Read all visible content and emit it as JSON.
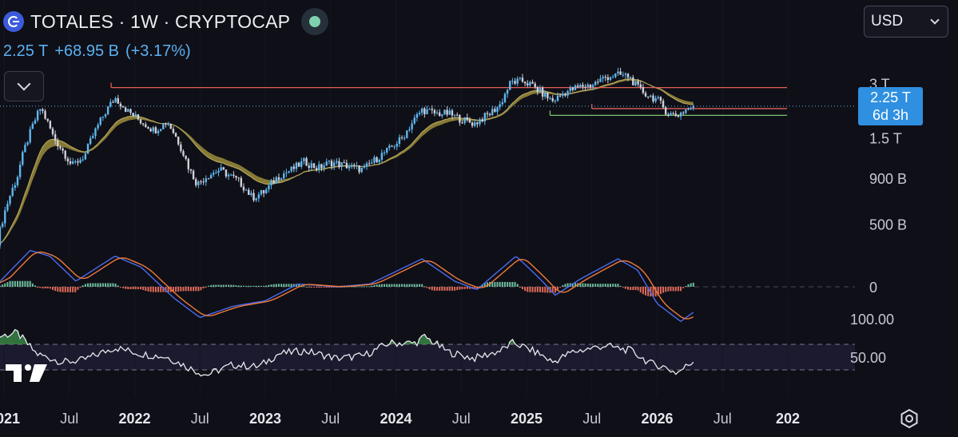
{
  "header": {
    "title": "TOTALES · 1W · CRYPTOCAP",
    "price": "2.25 T",
    "change": "+68.95 B",
    "change_pct": "(+3.17%)"
  },
  "currency_selector": {
    "value": "USD"
  },
  "last_price_tag": {
    "price": "2.25 T",
    "countdown": "6d 3h"
  },
  "colors": {
    "up": "#5eb8f0",
    "down": "#d0d0d8",
    "band": "#9a8c3c",
    "ema": "#b3a55a",
    "resistance": "#e0605a",
    "support": "#7bc36c",
    "price_line": "#5eb8f0",
    "macd": "#4a6cf0",
    "signal": "#f07a3c",
    "hist_pos": "#6fbfa0",
    "hist_neg": "#e06a5a",
    "rsi": "#e8e8ee",
    "rsi_band": "#1c1a2e",
    "axis_text": "#c8c8d2"
  },
  "chart_data": {
    "type": "candlestick",
    "title": "TOTALES · 1W · CRYPTOCAP",
    "timeframe": "1W",
    "y_scale": "log",
    "y_ticks": [
      "3 T",
      "1.5 T",
      "900 B",
      "500 B"
    ],
    "x_ticks": [
      "2021",
      "Jul",
      "2022",
      "Jul",
      "2023",
      "Jul",
      "2024",
      "Jul",
      "2025",
      "Jul",
      "2026",
      "Jul",
      "202"
    ],
    "x_tick_dates": [
      2021.0,
      2021.5,
      2022.0,
      2022.5,
      2023.0,
      2023.5,
      2024.0,
      2024.5,
      2025.0,
      2025.5,
      2026.0,
      2026.5,
      2027.0
    ],
    "last_price": "2.25 T",
    "last_price_value": 2250,
    "price_unit": "B",
    "horizontal_levels": [
      {
        "name": "resistance",
        "value": 2850,
        "start": 2021.82
      },
      {
        "name": "upper-support",
        "value": 2180,
        "start": 2025.5
      },
      {
        "name": "lower-support",
        "value": 2000,
        "start": 2025.18
      }
    ],
    "price_keypoints": [
      [
        2020.95,
        400
      ],
      [
        2021.1,
        900
      ],
      [
        2021.2,
        1600
      ],
      [
        2021.28,
        2200
      ],
      [
        2021.38,
        1500
      ],
      [
        2021.52,
        1050
      ],
      [
        2021.62,
        1200
      ],
      [
        2021.7,
        1650
      ],
      [
        2021.85,
        2500
      ],
      [
        2021.95,
        2100
      ],
      [
        2022.05,
        1850
      ],
      [
        2022.15,
        1650
      ],
      [
        2022.25,
        1850
      ],
      [
        2022.32,
        1500
      ],
      [
        2022.42,
        1000
      ],
      [
        2022.48,
        830
      ],
      [
        2022.55,
        920
      ],
      [
        2022.65,
        1000
      ],
      [
        2022.8,
        860
      ],
      [
        2022.9,
        700
      ],
      [
        2023.0,
        760
      ],
      [
        2023.1,
        920
      ],
      [
        2023.2,
        1000
      ],
      [
        2023.3,
        1110
      ],
      [
        2023.4,
        1020
      ],
      [
        2023.5,
        1100
      ],
      [
        2023.6,
        1060
      ],
      [
        2023.75,
        1000
      ],
      [
        2023.85,
        1150
      ],
      [
        2023.95,
        1300
      ],
      [
        2024.05,
        1500
      ],
      [
        2024.12,
        1800
      ],
      [
        2024.2,
        2150
      ],
      [
        2024.3,
        2050
      ],
      [
        2024.4,
        2050
      ],
      [
        2024.5,
        1900
      ],
      [
        2024.6,
        1800
      ],
      [
        2024.72,
        2050
      ],
      [
        2024.8,
        2300
      ],
      [
        2024.88,
        3050
      ],
      [
        2024.98,
        3100
      ],
      [
        2025.05,
        2900
      ],
      [
        2025.12,
        2650
      ],
      [
        2025.2,
        2400
      ],
      [
        2025.3,
        2700
      ],
      [
        2025.42,
        2900
      ],
      [
        2025.5,
        2950
      ],
      [
        2025.6,
        3250
      ],
      [
        2025.7,
        3350
      ],
      [
        2025.78,
        3300
      ],
      [
        2025.85,
        2850
      ],
      [
        2025.92,
        2600
      ],
      [
        2026.0,
        2450
      ],
      [
        2026.08,
        2050
      ],
      [
        2026.15,
        2000
      ],
      [
        2026.22,
        2150
      ],
      [
        2026.28,
        2250
      ]
    ],
    "macd_keypoints": [
      [
        2020.95,
        0.05
      ],
      [
        2021.2,
        0.65
      ],
      [
        2021.35,
        0.55
      ],
      [
        2021.55,
        0.1
      ],
      [
        2021.85,
        0.55
      ],
      [
        2022.05,
        0.35
      ],
      [
        2022.3,
        -0.2
      ],
      [
        2022.5,
        -0.55
      ],
      [
        2022.75,
        -0.35
      ],
      [
        2023.0,
        -0.25
      ],
      [
        2023.25,
        0.05
      ],
      [
        2023.55,
        0.0
      ],
      [
        2023.8,
        0.05
      ],
      [
        2024.2,
        0.5
      ],
      [
        2024.45,
        0.1
      ],
      [
        2024.62,
        -0.05
      ],
      [
        2024.92,
        0.55
      ],
      [
        2025.1,
        0.15
      ],
      [
        2025.22,
        -0.15
      ],
      [
        2025.42,
        0.15
      ],
      [
        2025.7,
        0.5
      ],
      [
        2025.85,
        0.3
      ],
      [
        2026.0,
        -0.3
      ],
      [
        2026.18,
        -0.62
      ],
      [
        2026.28,
        -0.45
      ]
    ],
    "rsi_range": [
      0,
      100
    ],
    "rsi_levels": [
      70,
      50,
      30
    ],
    "rsi_keypoints": [
      [
        2020.95,
        82
      ],
      [
        2021.1,
        88
      ],
      [
        2021.25,
        55
      ],
      [
        2021.45,
        42
      ],
      [
        2021.6,
        45
      ],
      [
        2021.85,
        65
      ],
      [
        2022.05,
        55
      ],
      [
        2022.25,
        50
      ],
      [
        2022.45,
        30
      ],
      [
        2022.55,
        22
      ],
      [
        2022.75,
        38
      ],
      [
        2022.95,
        35
      ],
      [
        2023.1,
        55
      ],
      [
        2023.3,
        60
      ],
      [
        2023.55,
        48
      ],
      [
        2023.75,
        52
      ],
      [
        2023.95,
        72
      ],
      [
        2024.15,
        72
      ],
      [
        2024.22,
        82
      ],
      [
        2024.4,
        58
      ],
      [
        2024.6,
        48
      ],
      [
        2024.8,
        60
      ],
      [
        2024.9,
        73
      ],
      [
        2025.1,
        55
      ],
      [
        2025.2,
        42
      ],
      [
        2025.35,
        58
      ],
      [
        2025.6,
        68
      ],
      [
        2025.8,
        60
      ],
      [
        2025.95,
        40
      ],
      [
        2026.05,
        35
      ],
      [
        2026.15,
        25
      ],
      [
        2026.28,
        44
      ]
    ],
    "rsi_tick_labels": [
      "100.00",
      "50.00"
    ],
    "macd_zero_label": "0"
  }
}
